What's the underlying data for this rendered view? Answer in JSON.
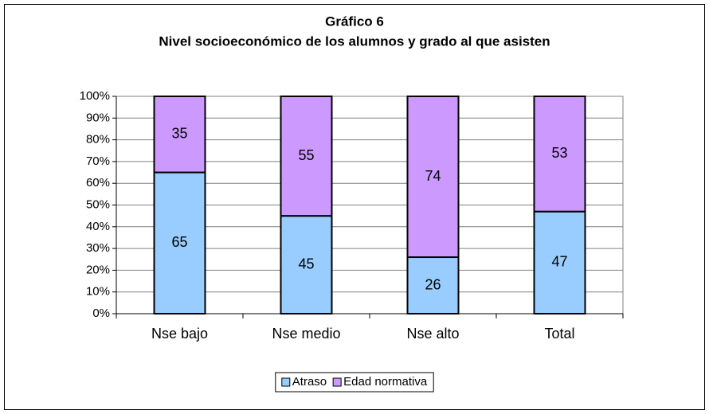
{
  "chart_data": {
    "type": "stacked_bar",
    "title": "Gráfico 6",
    "subtitle": "Nivel socioeconómico de los alumnos y grado al que asisten",
    "categories": [
      "Nse bajo",
      "Nse medio",
      "Nse alto",
      "Total"
    ],
    "series": [
      {
        "name": "Atraso",
        "color": "#99ccff",
        "values": [
          65,
          45,
          26,
          47
        ]
      },
      {
        "name": "Edad normativa",
        "color": "#cc99ff",
        "values": [
          35,
          55,
          74,
          53
        ]
      }
    ],
    "ylim": [
      0,
      100
    ],
    "yticks": [
      {
        "value": 0,
        "label": "0%"
      },
      {
        "value": 10,
        "label": "10%"
      },
      {
        "value": 20,
        "label": "20%"
      },
      {
        "value": 30,
        "label": "30%"
      },
      {
        "value": 40,
        "label": "40%"
      },
      {
        "value": 50,
        "label": "50%"
      },
      {
        "value": 60,
        "label": "60%"
      },
      {
        "value": 70,
        "label": "70%"
      },
      {
        "value": 80,
        "label": "80%"
      },
      {
        "value": 90,
        "label": "90%"
      },
      {
        "value": 100,
        "label": "100%"
      }
    ],
    "grid": true,
    "legend": "bottom"
  }
}
